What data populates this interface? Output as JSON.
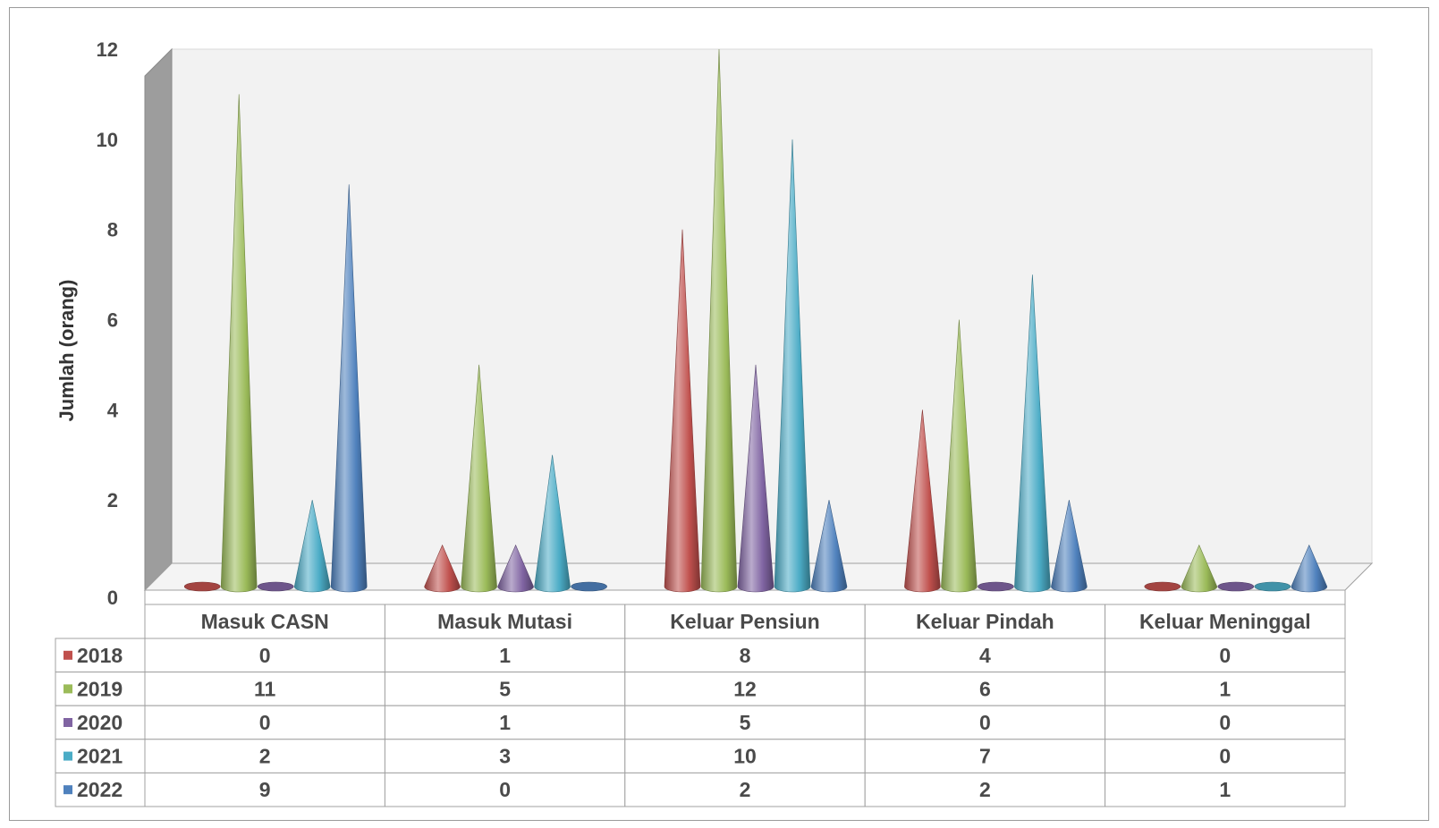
{
  "chart_data": {
    "type": "bar",
    "style": "3d-cone",
    "categories": [
      "Masuk CASN",
      "Masuk Mutasi",
      "Keluar Pensiun",
      "Keluar Pindah",
      "Keluar Meninggal"
    ],
    "series": [
      {
        "name": "2018",
        "color": "#C0504D",
        "values": [
          0,
          1,
          8,
          4,
          0
        ]
      },
      {
        "name": "2019",
        "color": "#9BBB59",
        "values": [
          11,
          5,
          12,
          6,
          1
        ]
      },
      {
        "name": "2020",
        "color": "#8064A2",
        "values": [
          0,
          1,
          5,
          0,
          0
        ]
      },
      {
        "name": "2021",
        "color": "#4BACC6",
        "values": [
          2,
          3,
          10,
          7,
          0
        ]
      },
      {
        "name": "2022",
        "color": "#4F81BD",
        "values": [
          9,
          0,
          2,
          2,
          1
        ]
      }
    ],
    "ylabel": "Jumlah (orang)",
    "xlabel": "",
    "ylim": [
      0,
      12
    ],
    "yticks": [
      0,
      2,
      4,
      6,
      8,
      10,
      12
    ],
    "grid": false,
    "legend": "data-table-bottom"
  }
}
